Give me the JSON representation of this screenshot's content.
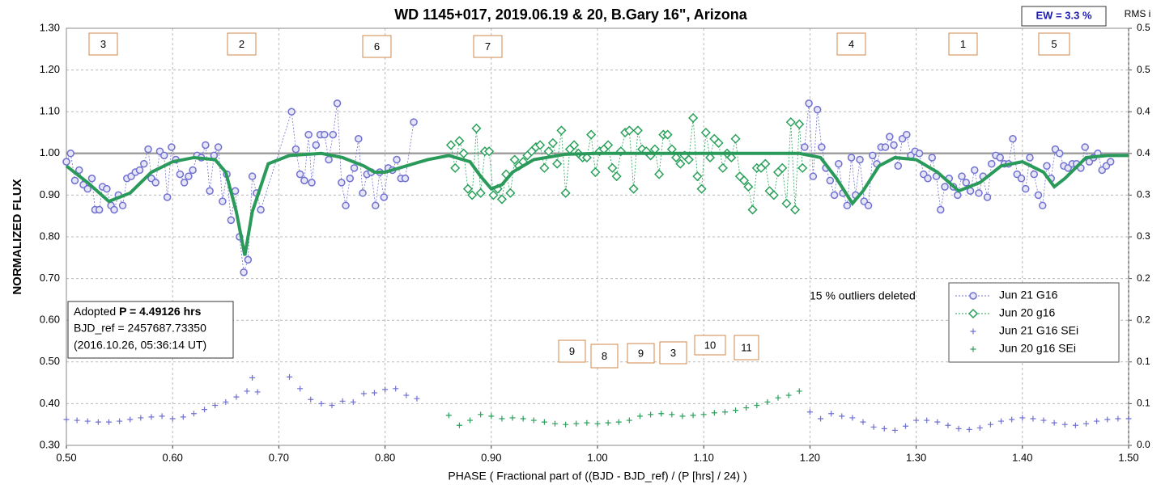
{
  "chart_data": {
    "type": "scatter",
    "title": "WD 1145+017, 2019.06.19 & 20, B.Gary 16\", Arizona",
    "ylabel": "NORMALIZED FLUX",
    "xlabel": "PHASE ( Fractional part of ((BJD - BJD_ref) / (P [hrs] / 24) )",
    "y2label": "RMS i",
    "ew_label": "EW = 3.3 %",
    "note": "15 % outliers deleted",
    "info": {
      "prefix": "Adopted ",
      "period": "P = 4.49126 hrs",
      "bjd_ref": "BJD_ref = 2457687.73350",
      "date": "(2016.10.26, 05:36:14 UT)"
    },
    "annotations": [
      "3",
      "2",
      "6",
      "7",
      "4",
      "1",
      "5",
      "9",
      "8",
      "9",
      "3",
      "10",
      "11"
    ],
    "grid": true,
    "legend": "lower right",
    "xlim": [
      0.5,
      1.5
    ],
    "xticks": [
      {
        "value": 0.5,
        "label": "0.50"
      },
      {
        "value": 0.6,
        "label": "0.60"
      },
      {
        "value": 0.7,
        "label": "0.70"
      },
      {
        "value": 0.8,
        "label": "0.80"
      },
      {
        "value": 0.9,
        "label": "0.90"
      },
      {
        "value": 1.0,
        "label": "1.00"
      },
      {
        "value": 1.1,
        "label": "1.10"
      },
      {
        "value": 1.2,
        "label": "1.20"
      },
      {
        "value": 1.3,
        "label": "1.30"
      },
      {
        "value": 1.4,
        "label": "1.40"
      },
      {
        "value": 1.5,
        "label": "1.50"
      }
    ],
    "ylim": [
      0.3,
      1.3
    ],
    "yticks": [
      {
        "value": 0.3,
        "label": "0.30"
      },
      {
        "value": 0.4,
        "label": "0.40"
      },
      {
        "value": 0.5,
        "label": "0.50"
      },
      {
        "value": 0.6,
        "label": "0.60"
      },
      {
        "value": 0.7,
        "label": "0.70"
      },
      {
        "value": 0.8,
        "label": "0.80"
      },
      {
        "value": 0.9,
        "label": "0.90"
      },
      {
        "value": 1.0,
        "label": "1.00"
      },
      {
        "value": 1.1,
        "label": "1.10"
      },
      {
        "value": 1.2,
        "label": "1.20"
      },
      {
        "value": 1.3,
        "label": "1.30"
      }
    ],
    "y2lim": [
      0,
      0.5
    ],
    "y2ticks": [
      {
        "value": 0,
        "label": "0.0"
      },
      {
        "value": 0.05,
        "label": "0.1"
      },
      {
        "value": 0.1,
        "label": "0.1"
      },
      {
        "value": 0.15,
        "label": "0.2"
      },
      {
        "value": 0.2,
        "label": "0.2"
      },
      {
        "value": 0.25,
        "label": "0.3"
      },
      {
        "value": 0.3,
        "label": "0.3"
      },
      {
        "value": 0.35,
        "label": "0.4"
      },
      {
        "value": 0.4,
        "label": "0.4"
      },
      {
        "value": 0.45,
        "label": "0.5"
      },
      {
        "value": 0.5,
        "label": "0.5"
      }
    ],
    "series": [
      {
        "name": "Jun 21 G16",
        "color": "#7070d0",
        "marker": "circle",
        "x": [
          0.5,
          0.504,
          0.508,
          0.512,
          0.516,
          0.52,
          0.524,
          0.527,
          0.531,
          0.534,
          0.538,
          0.542,
          0.545,
          0.549,
          0.553,
          0.557,
          0.561,
          0.565,
          0.569,
          0.573,
          0.577,
          0.58,
          0.584,
          0.588,
          0.592,
          0.595,
          0.599,
          0.603,
          0.607,
          0.611,
          0.615,
          0.619,
          0.623,
          0.627,
          0.631,
          0.635,
          0.639,
          0.643,
          0.647,
          0.651,
          0.655,
          0.659,
          0.663,
          0.667,
          0.671,
          0.675,
          0.679,
          0.683,
          0.712,
          0.716,
          0.72,
          0.724,
          0.728,
          0.731,
          0.735,
          0.739,
          0.743,
          0.747,
          0.751,
          0.755,
          0.759,
          0.763,
          0.767,
          0.771,
          0.775,
          0.779,
          0.783,
          0.787,
          0.791,
          0.795,
          0.799,
          0.803,
          0.807,
          0.811,
          0.815,
          0.819,
          0.827,
          1.0,
          1.195,
          1.199,
          1.203,
          1.207,
          1.211,
          1.215,
          1.219,
          1.223,
          1.227,
          1.231,
          1.235,
          1.239,
          1.243,
          1.247,
          1.251,
          1.255,
          1.259,
          1.263,
          1.267,
          1.271,
          1.275,
          1.279,
          1.283,
          1.287,
          1.291,
          1.295,
          1.299,
          1.303,
          1.307,
          1.311,
          1.315,
          1.319,
          1.323,
          1.327,
          1.331,
          1.335,
          1.339,
          1.343,
          1.347,
          1.351,
          1.355,
          1.359,
          1.363,
          1.367,
          1.371,
          1.375,
          1.379,
          1.383,
          1.387,
          1.391,
          1.395,
          1.399,
          1.403,
          1.407,
          1.411,
          1.415,
          1.419,
          1.423,
          1.427,
          1.431,
          1.435,
          1.439,
          1.443,
          1.447,
          1.451,
          1.455,
          1.459,
          1.463,
          1.467,
          1.471,
          1.475,
          1.479,
          1.483
        ],
        "values": [
          0.98,
          1.0,
          0.935,
          0.96,
          0.925,
          0.915,
          0.94,
          0.865,
          0.865,
          0.92,
          0.915,
          0.875,
          0.865,
          0.9,
          0.875,
          0.94,
          0.945,
          0.955,
          0.96,
          0.975,
          1.01,
          0.94,
          0.93,
          1.005,
          0.995,
          0.895,
          1.015,
          0.985,
          0.95,
          0.93,
          0.945,
          0.96,
          0.995,
          0.99,
          1.02,
          0.91,
          0.995,
          1.015,
          0.885,
          0.95,
          0.84,
          0.91,
          0.8,
          0.715,
          0.745,
          0.945,
          0.905,
          0.865,
          1.1,
          1.01,
          0.95,
          0.935,
          1.045,
          0.93,
          1.02,
          1.045,
          1.045,
          0.985,
          1.045,
          1.12,
          0.93,
          0.875,
          0.94,
          0.965,
          1.035,
          0.905,
          0.95,
          0.955,
          0.875,
          0.955,
          0.895,
          0.965,
          0.96,
          0.985,
          0.94,
          0.94,
          1.075,
          null,
          1.015,
          1.12,
          0.945,
          1.105,
          1.015,
          0.965,
          0.935,
          0.9,
          0.975,
          0.905,
          0.875,
          0.99,
          0.9,
          0.985,
          0.885,
          0.875,
          0.995,
          0.975,
          1.015,
          1.015,
          1.04,
          1.02,
          0.97,
          1.035,
          1.045,
          0.995,
          1.005,
          1.0,
          0.95,
          0.94,
          0.99,
          0.945,
          0.865,
          0.92,
          0.94,
          0.92,
          0.9,
          0.945,
          0.93,
          0.91,
          0.96,
          0.905,
          0.945,
          0.895,
          0.975,
          0.995,
          0.99,
          0.975,
          0.975,
          1.035,
          0.95,
          0.94,
          0.915,
          0.99,
          0.95,
          0.9,
          0.875,
          0.97,
          0.94,
          1.01,
          1.0,
          0.97,
          0.965,
          0.975,
          0.975,
          0.965,
          1.015,
          0.98,
          0.99,
          1.0,
          0.96,
          0.97,
          0.98
        ]
      },
      {
        "name": "Jun 20 g16",
        "color": "#2aa05a",
        "marker": "diamond",
        "x": [
          0.862,
          0.866,
          0.87,
          0.874,
          0.878,
          0.882,
          0.886,
          0.89,
          0.894,
          0.898,
          0.902,
          0.906,
          0.91,
          0.914,
          0.918,
          0.922,
          0.926,
          0.93,
          0.934,
          0.938,
          0.942,
          0.946,
          0.95,
          0.954,
          0.958,
          0.962,
          0.966,
          0.97,
          0.974,
          0.978,
          0.982,
          0.986,
          0.99,
          0.994,
          0.998,
          1.002,
          1.006,
          1.01,
          1.014,
          1.018,
          1.022,
          1.026,
          1.03,
          1.034,
          1.038,
          1.042,
          1.046,
          1.05,
          1.054,
          1.058,
          1.062,
          1.066,
          1.07,
          1.074,
          1.078,
          1.082,
          1.086,
          1.09,
          1.094,
          1.098,
          1.102,
          1.106,
          1.11,
          1.114,
          1.118,
          1.122,
          1.126,
          1.13,
          1.134,
          1.138,
          1.142,
          1.146,
          1.15,
          1.154,
          1.158,
          1.162,
          1.166,
          1.17,
          1.174,
          1.178,
          1.182,
          1.186,
          1.19,
          1.193
        ],
        "values": [
          1.02,
          0.965,
          1.03,
          1.0,
          0.915,
          0.9,
          1.06,
          0.905,
          1.005,
          1.005,
          0.9,
          0.915,
          0.89,
          0.95,
          0.905,
          0.985,
          0.97,
          0.98,
          0.995,
          1.005,
          1.015,
          1.02,
          0.965,
          1.005,
          1.025,
          0.975,
          1.055,
          0.905,
          1.01,
          1.02,
          1.0,
          0.99,
          0.99,
          1.045,
          0.955,
          1.005,
          1.01,
          1.02,
          0.965,
          0.945,
          1.005,
          1.05,
          1.055,
          0.915,
          1.055,
          1.01,
          1.005,
          0.995,
          1.01,
          0.95,
          1.045,
          1.045,
          1.01,
          0.99,
          0.975,
          0.995,
          0.985,
          1.085,
          0.945,
          0.915,
          1.05,
          0.99,
          1.035,
          1.025,
          0.965,
          1.0,
          0.99,
          1.035,
          0.945,
          0.935,
          0.92,
          0.865,
          0.965,
          0.965,
          0.975,
          0.91,
          0.9,
          0.955,
          0.965,
          0.88,
          1.075,
          0.865,
          1.07,
          0.965
        ]
      },
      {
        "name": "Jun 21 G16 SEi",
        "color": "#7070d0",
        "marker": "plus",
        "axis": "y2",
        "x": [
          0.5,
          0.51,
          0.52,
          0.53,
          0.54,
          0.55,
          0.56,
          0.57,
          0.58,
          0.59,
          0.6,
          0.61,
          0.62,
          0.63,
          0.64,
          0.65,
          0.66,
          0.67,
          0.675,
          0.68,
          0.71,
          0.72,
          0.73,
          0.74,
          0.75,
          0.76,
          0.77,
          0.78,
          0.79,
          0.8,
          0.81,
          0.82,
          0.83,
          1.2,
          1.21,
          1.22,
          1.23,
          1.24,
          1.25,
          1.26,
          1.27,
          1.28,
          1.29,
          1.3,
          1.31,
          1.32,
          1.33,
          1.34,
          1.35,
          1.36,
          1.37,
          1.38,
          1.39,
          1.4,
          1.41,
          1.42,
          1.43,
          1.44,
          1.45,
          1.46,
          1.47,
          1.48,
          1.49,
          1.5
        ],
        "values": [
          0.031,
          0.03,
          0.029,
          0.028,
          0.028,
          0.029,
          0.031,
          0.033,
          0.034,
          0.035,
          0.032,
          0.034,
          0.038,
          0.043,
          0.048,
          0.052,
          0.058,
          0.065,
          0.081,
          0.064,
          0.082,
          0.068,
          0.055,
          0.05,
          0.048,
          0.053,
          0.052,
          0.062,
          0.063,
          0.067,
          0.068,
          0.06,
          0.056,
          0.04,
          0.032,
          0.038,
          0.035,
          0.033,
          0.028,
          0.022,
          0.02,
          0.018,
          0.023,
          0.03,
          0.03,
          0.028,
          0.024,
          0.02,
          0.019,
          0.021,
          0.025,
          0.029,
          0.031,
          0.033,
          0.032,
          0.03,
          0.027,
          0.025,
          0.024,
          0.026,
          0.029,
          0.031,
          0.032,
          0.032
        ]
      },
      {
        "name": "Jun 20 g16 SEi",
        "color": "#2aa05a",
        "marker": "plus",
        "axis": "y2",
        "x": [
          0.86,
          0.87,
          0.88,
          0.89,
          0.9,
          0.91,
          0.92,
          0.93,
          0.94,
          0.95,
          0.96,
          0.97,
          0.98,
          0.99,
          1.0,
          1.01,
          1.02,
          1.03,
          1.04,
          1.05,
          1.06,
          1.07,
          1.08,
          1.09,
          1.1,
          1.11,
          1.12,
          1.13,
          1.14,
          1.15,
          1.16,
          1.17,
          1.18,
          1.19
        ],
        "values": [
          0.036,
          0.024,
          0.03,
          0.037,
          0.035,
          0.032,
          0.033,
          0.032,
          0.03,
          0.028,
          0.026,
          0.025,
          0.026,
          0.027,
          0.026,
          0.027,
          0.028,
          0.03,
          0.035,
          0.037,
          0.038,
          0.037,
          0.035,
          0.036,
          0.037,
          0.039,
          0.04,
          0.042,
          0.045,
          0.048,
          0.052,
          0.057,
          0.06,
          0.065
        ]
      },
      {
        "color": "#2a9a5a",
        "marker": "line",
        "x": [
          0.5,
          0.52,
          0.54,
          0.56,
          0.58,
          0.6,
          0.62,
          0.64,
          0.65,
          0.66,
          0.668,
          0.675,
          0.69,
          0.71,
          0.74,
          0.76,
          0.78,
          0.79,
          0.8,
          0.82,
          0.84,
          0.86,
          0.88,
          0.89,
          0.9,
          0.91,
          0.92,
          0.94,
          0.97,
          1.0,
          1.1,
          1.19,
          1.21,
          1.225,
          1.24,
          1.25,
          1.265,
          1.28,
          1.3,
          1.32,
          1.34,
          1.36,
          1.38,
          1.4,
          1.42,
          1.43,
          1.44,
          1.46,
          1.48,
          1.5
        ],
        "values": [
          0.97,
          0.93,
          0.885,
          0.905,
          0.955,
          0.98,
          0.99,
          0.985,
          0.955,
          0.86,
          0.755,
          0.86,
          0.975,
          0.995,
          1.0,
          0.99,
          0.97,
          0.955,
          0.955,
          0.97,
          0.985,
          0.995,
          0.98,
          0.945,
          0.915,
          0.925,
          0.955,
          0.985,
          0.998,
          1.0,
          1.0,
          1.0,
          0.99,
          0.94,
          0.88,
          0.91,
          0.97,
          0.99,
          0.985,
          0.955,
          0.91,
          0.93,
          0.97,
          0.98,
          0.955,
          0.92,
          0.94,
          0.99,
          0.995,
          0.995
        ]
      }
    ]
  }
}
